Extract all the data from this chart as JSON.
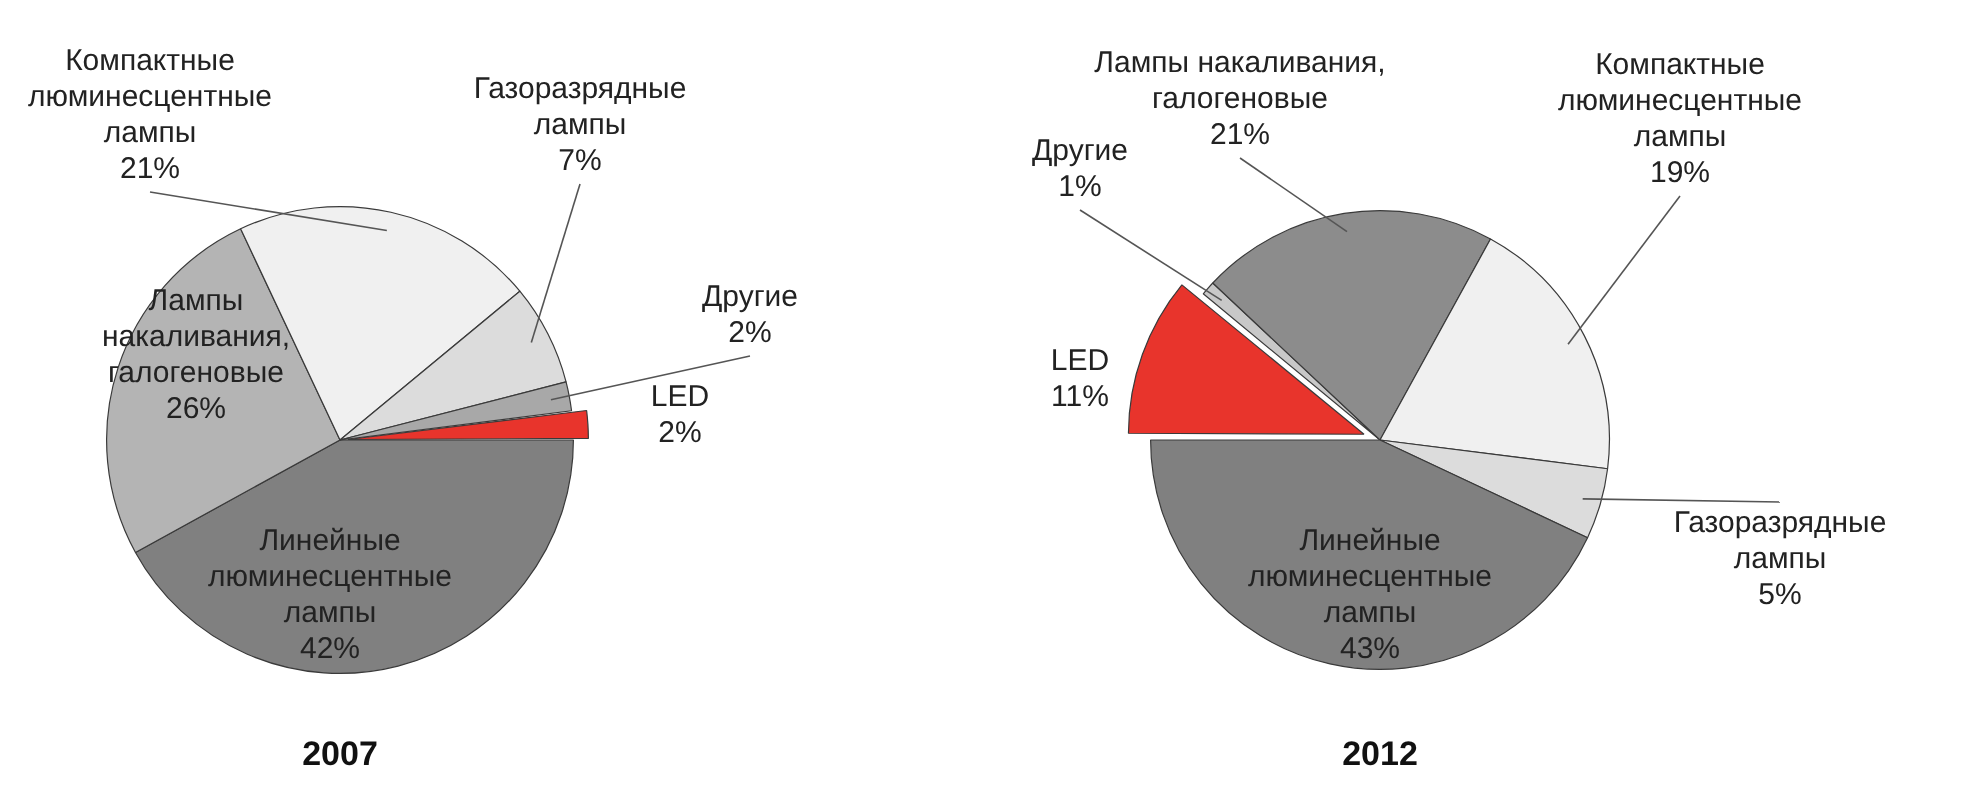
{
  "chart_data": [
    {
      "type": "pie",
      "title": "2007",
      "categories": [
        "Линейные люминесцентные лампы",
        "Лампы накаливания, галогеновые",
        "Компактные люминесцентные лампы",
        "Газоразрядные лампы",
        "Другие",
        "LED"
      ],
      "values": [
        42,
        26,
        21,
        7,
        2,
        2
      ],
      "value_labels": [
        "42%",
        "26%",
        "21%",
        "7%",
        "2%",
        "2%"
      ],
      "colors": [
        "#808080",
        "#b4b4b4",
        "#f0f0f0",
        "#dcdcdc",
        "#a8a8a8",
        "#e8342c"
      ]
    },
    {
      "type": "pie",
      "title": "2012",
      "categories": [
        "LED",
        "Другие",
        "Лампы накаливания, галогеновые",
        "Компактные люминесцентные лампы",
        "Газоразрядные лампы",
        "Линейные люминесцентные лампы"
      ],
      "values": [
        11,
        1,
        21,
        19,
        5,
        43
      ],
      "value_labels": [
        "11%",
        "1%",
        "21%",
        "19%",
        "5%",
        "43%"
      ],
      "colors": [
        "#e8342c",
        "#c8c8c8",
        "#8c8c8c",
        "#f0f0f0",
        "#dcdcdc",
        "#808080"
      ]
    }
  ]
}
